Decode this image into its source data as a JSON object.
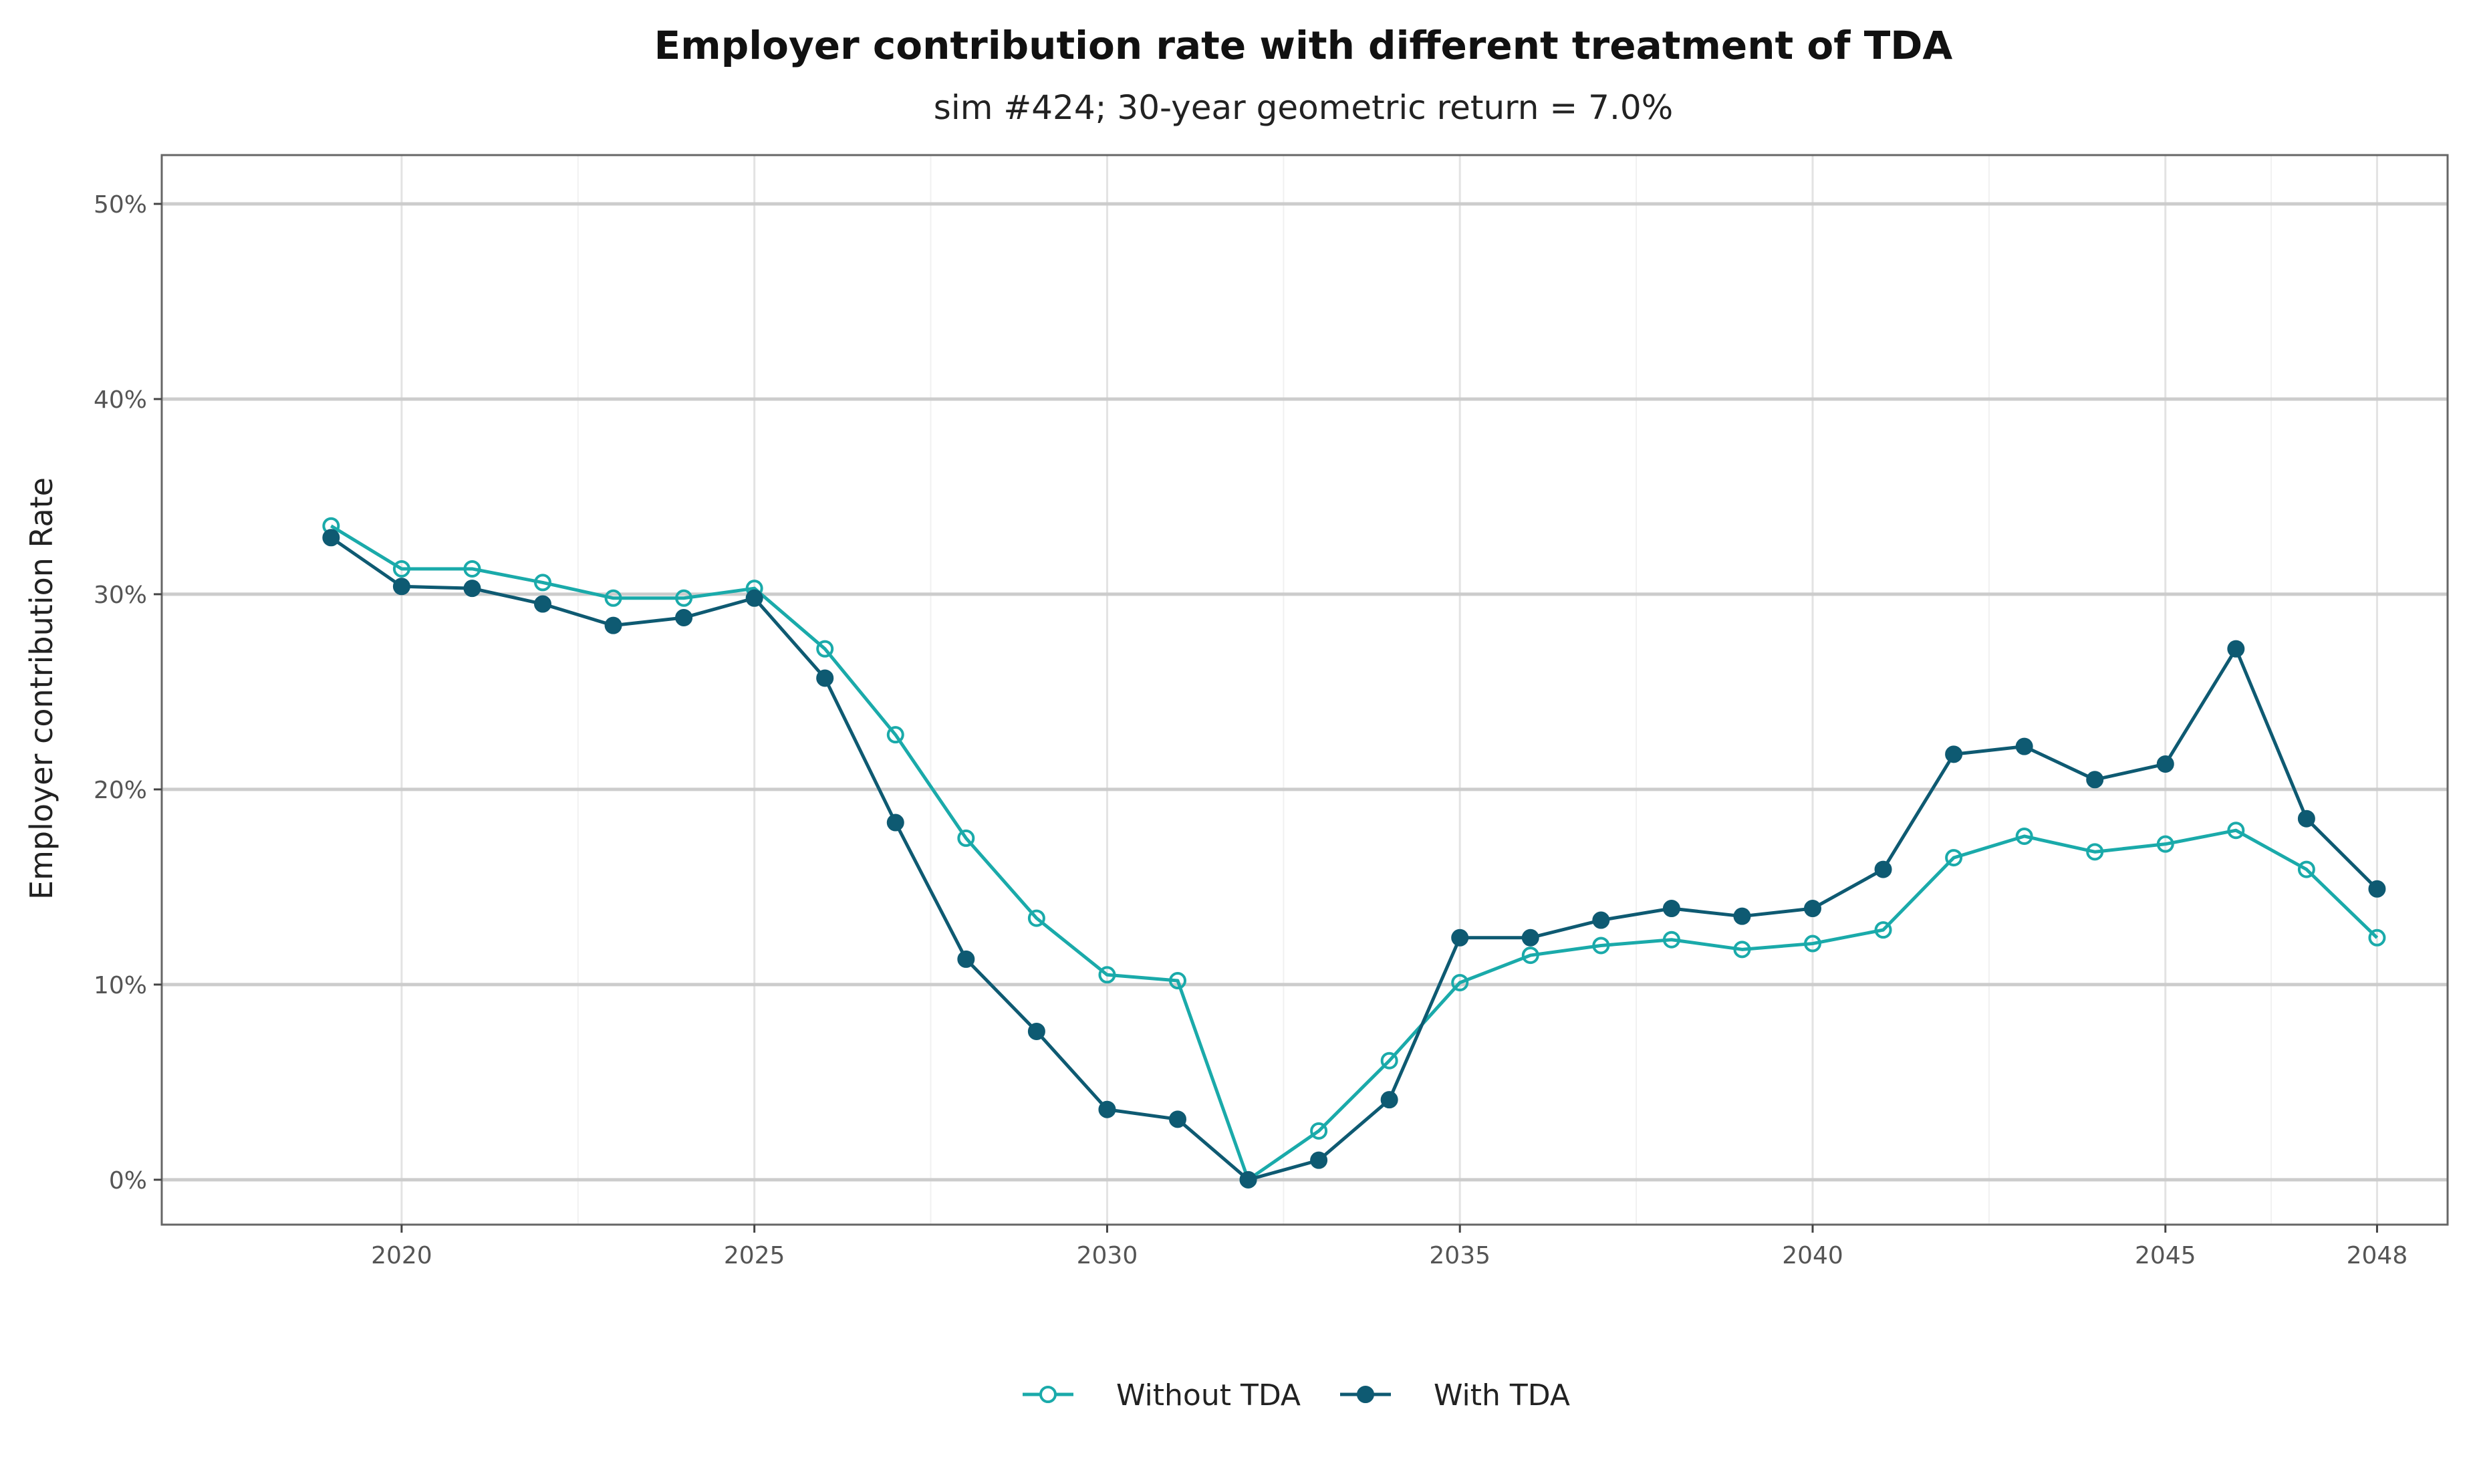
{
  "chart_data": {
    "type": "line",
    "title": "Employer contribution rate with different treatment of TDA",
    "subtitle": "sim #424; 30-year geometric return = 7.0%",
    "xlabel": "",
    "ylabel": "Employer contribution Rate",
    "x": [
      2019,
      2020,
      2021,
      2022,
      2023,
      2024,
      2025,
      2026,
      2027,
      2028,
      2029,
      2030,
      2031,
      2032,
      2033,
      2034,
      2035,
      2036,
      2037,
      2038,
      2039,
      2040,
      2041,
      2042,
      2043,
      2044,
      2045,
      2046,
      2047,
      2048
    ],
    "xlim": [
      2016.6,
      2049.0
    ],
    "ylim": [
      -2.3,
      52.5
    ],
    "x_ticks": [
      2020,
      2025,
      2030,
      2035,
      2040,
      2045,
      2048
    ],
    "x_tick_labels": [
      "2020",
      "2025",
      "2030",
      "2035",
      "2040",
      "2045",
      "2048"
    ],
    "y_ticks": [
      0,
      10,
      20,
      30,
      40,
      50
    ],
    "y_tick_labels": [
      "0%",
      "10%",
      "20%",
      "30%",
      "40%",
      "50%"
    ],
    "grid": true,
    "legend_position": "bottom",
    "series": [
      {
        "name": "Without TDA",
        "color": "#1aaaaa",
        "marker": "open-circle",
        "values": [
          33.5,
          31.3,
          31.3,
          30.6,
          29.8,
          29.8,
          30.3,
          27.2,
          22.8,
          17.5,
          13.4,
          10.5,
          10.2,
          0.0,
          2.5,
          6.1,
          10.1,
          11.5,
          12.0,
          12.3,
          11.8,
          12.1,
          12.8,
          16.5,
          17.6,
          16.8,
          17.2,
          17.9,
          15.9,
          12.4
        ]
      },
      {
        "name": "With TDA",
        "color": "#0e5a72",
        "marker": "filled-circle",
        "values": [
          32.9,
          30.4,
          30.3,
          29.5,
          28.4,
          28.8,
          29.8,
          25.7,
          18.3,
          11.3,
          7.6,
          3.6,
          3.1,
          0.0,
          1.0,
          4.1,
          12.4,
          12.4,
          13.3,
          13.9,
          13.5,
          13.9,
          15.9,
          21.8,
          22.2,
          20.5,
          21.3,
          27.2,
          18.5,
          14.9
        ]
      }
    ]
  }
}
